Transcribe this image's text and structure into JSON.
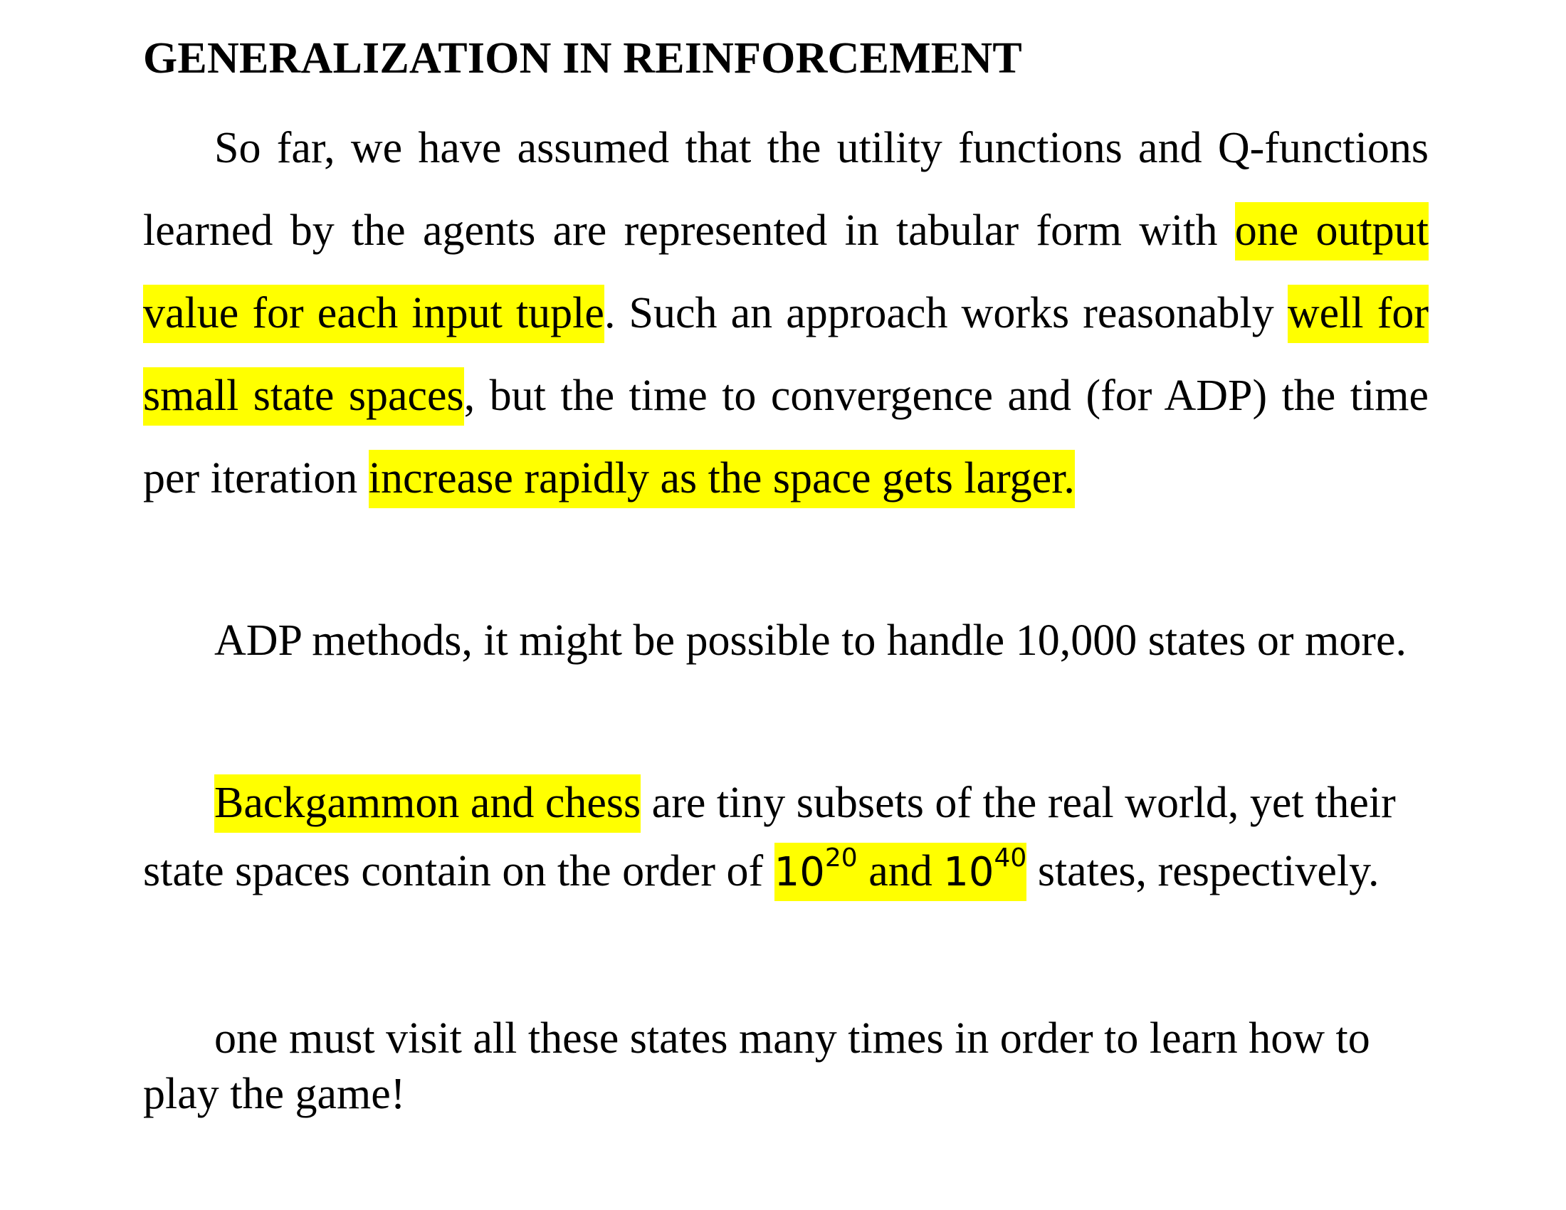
{
  "document": {
    "title": "GENERALIZATION IN REINFORCEMENT",
    "highlight_color": "#ffff00",
    "paragraph1": {
      "t1": "So far, we have assumed that the utility functions and Q-functions learned by the agents are represented in tabular form with ",
      "h1": "one output value for each input tuple",
      "t2": ". Such an approach works reasonably ",
      "h2": "well for small state spaces",
      "t3": ", but the time to convergence and (for ADP) the time per iteration ",
      "h3": "increase rapidly as the space gets larger."
    },
    "paragraph2": {
      "text": "ADP methods, it might be possible to handle 10,000 states or more."
    },
    "paragraph3": {
      "h1": "Backgammon and chess",
      "t1": " are tiny subsets of the real world, yet their state spaces contain on the order of ",
      "n1_base": "10",
      "n1_exp": "20",
      "h_and": " and ",
      "n2_base": "10",
      "n2_exp": "40",
      "t2": " states, respectively."
    },
    "paragraph4": {
      "text": "one must visit all these states many times in order to learn how to play the game!"
    }
  }
}
